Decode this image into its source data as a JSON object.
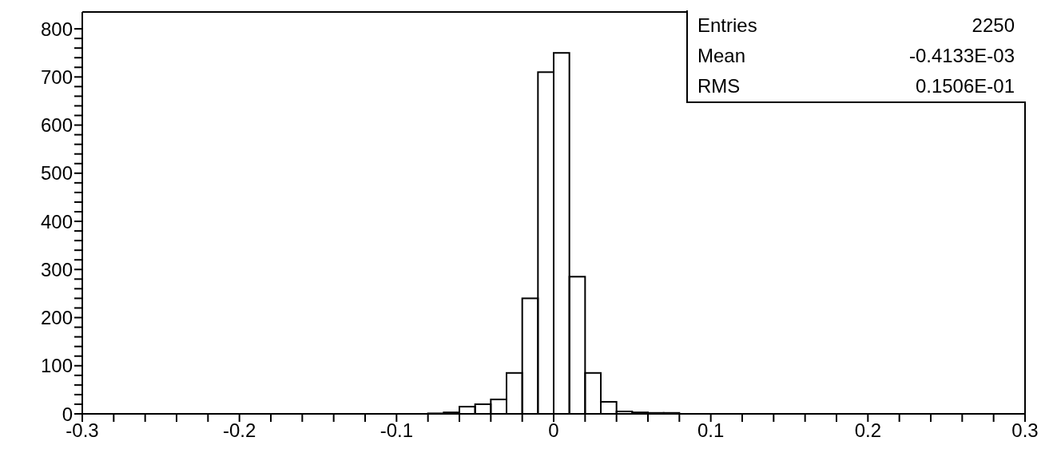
{
  "chart_data": {
    "type": "histogram",
    "bins": [
      -0.3,
      -0.29,
      -0.28,
      -0.27,
      -0.26,
      -0.25,
      -0.24,
      -0.23,
      -0.22,
      -0.21,
      -0.2,
      -0.19,
      -0.18,
      -0.17,
      -0.16,
      -0.15,
      -0.14,
      -0.13,
      -0.12,
      -0.11,
      -0.1,
      -0.09,
      -0.08,
      -0.07,
      -0.06,
      -0.05,
      -0.04,
      -0.03,
      -0.02,
      -0.01,
      0,
      0.01,
      0.02,
      0.03,
      0.04,
      0.05,
      0.06,
      0.07,
      0.08,
      0.09,
      0.1,
      0.11,
      0.12,
      0.13,
      0.14,
      0.15,
      0.16,
      0.17,
      0.18,
      0.19,
      0.2,
      0.21,
      0.22,
      0.23,
      0.24,
      0.25,
      0.26,
      0.27,
      0.28,
      0.29,
      0.3
    ],
    "values": [
      0,
      0,
      0,
      0,
      0,
      0,
      0,
      0,
      0,
      0,
      0,
      0,
      0,
      0,
      0,
      0,
      0,
      0,
      0,
      0,
      0,
      0,
      1,
      3,
      15,
      20,
      30,
      85,
      240,
      710,
      750,
      285,
      85,
      25,
      5,
      3,
      2,
      2,
      0,
      0,
      0,
      0,
      0,
      0,
      0,
      0,
      0,
      0,
      0,
      0,
      0,
      0,
      0,
      0,
      0,
      0,
      0,
      0,
      0,
      0
    ],
    "color": "#000000",
    "xlim": [
      -0.3,
      0.3
    ],
    "xticks": [
      -0.3,
      {
        "value": -0.28,
        "label": null
      },
      {
        "value": -0.26,
        "label": null
      },
      {
        "value": -0.24,
        "label": null
      },
      {
        "value": -0.22,
        "label": null
      },
      -0.2,
      {
        "value": -0.18,
        "label": null
      },
      {
        "value": -0.16,
        "label": null
      },
      {
        "value": -0.14,
        "label": null
      },
      {
        "value": -0.12,
        "label": null
      },
      -0.1,
      {
        "value": -0.08,
        "label": null
      },
      {
        "value": -0.06,
        "label": null
      },
      {
        "value": -0.04,
        "label": null
      },
      {
        "value": -0.02,
        "label": null
      },
      0,
      {
        "value": 0.02,
        "label": null
      },
      {
        "value": 0.04,
        "label": null
      },
      {
        "value": 0.06,
        "label": null
      },
      {
        "value": 0.08,
        "label": null
      },
      0.1,
      {
        "value": 0.12,
        "label": null
      },
      {
        "value": 0.14,
        "label": null
      },
      {
        "value": 0.16,
        "label": null
      },
      {
        "value": 0.18,
        "label": null
      },
      0.2,
      {
        "value": 0.22,
        "label": null
      },
      {
        "value": 0.24,
        "label": null
      },
      {
        "value": 0.26,
        "label": null
      },
      {
        "value": 0.28,
        "label": null
      },
      0.3
    ],
    "ylim": [
      0,
      835
    ],
    "yticks": [
      0,
      {
        "value": 20,
        "label": null
      },
      {
        "value": 40,
        "label": null
      },
      {
        "value": 60,
        "label": null
      },
      {
        "value": 80,
        "label": null
      },
      100,
      {
        "value": 120,
        "label": null
      },
      {
        "value": 140,
        "label": null
      },
      {
        "value": 160,
        "label": null
      },
      {
        "value": 180,
        "label": null
      },
      200,
      {
        "value": 220,
        "label": null
      },
      {
        "value": 240,
        "label": null
      },
      {
        "value": 260,
        "label": null
      },
      {
        "value": 280,
        "label": null
      },
      300,
      {
        "value": 320,
        "label": null
      },
      {
        "value": 340,
        "label": null
      },
      {
        "value": 360,
        "label": null
      },
      {
        "value": 380,
        "label": null
      },
      400,
      {
        "value": 420,
        "label": null
      },
      {
        "value": 440,
        "label": null
      },
      {
        "value": 460,
        "label": null
      },
      {
        "value": 480,
        "label": null
      },
      500,
      {
        "value": 520,
        "label": null
      },
      {
        "value": 540,
        "label": null
      },
      {
        "value": 560,
        "label": null
      },
      {
        "value": 580,
        "label": null
      },
      600,
      {
        "value": 620,
        "label": null
      },
      {
        "value": 640,
        "label": null
      },
      {
        "value": 660,
        "label": null
      },
      {
        "value": 680,
        "label": null
      },
      700,
      {
        "value": 720,
        "label": null
      },
      {
        "value": 740,
        "label": null
      },
      {
        "value": 760,
        "label": null
      },
      {
        "value": 780,
        "label": null
      },
      800
    ],
    "annotations": [
      "Entries",
      "2250",
      "Mean",
      "-0.4133E-03",
      "RMS",
      "0.1506E-01"
    ]
  }
}
